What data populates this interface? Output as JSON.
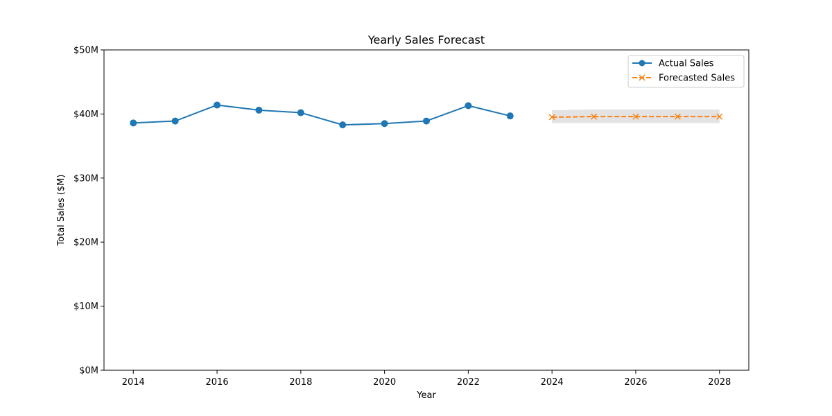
{
  "chart_data": {
    "type": "line",
    "title": "Yearly Sales Forecast",
    "xlabel": "Year",
    "ylabel": "Total Sales ($M)",
    "xlim": [
      2013.3,
      2028.7
    ],
    "ylim": [
      0,
      50
    ],
    "x_ticks": [
      2014,
      2016,
      2018,
      2020,
      2022,
      2024,
      2026,
      2028
    ],
    "x_tick_labels": [
      "2014",
      "2016",
      "2018",
      "2020",
      "2022",
      "2024",
      "2026",
      "2028"
    ],
    "y_ticks": [
      0,
      10,
      20,
      30,
      40,
      50
    ],
    "y_tick_labels": [
      "$0M",
      "$10M",
      "$20M",
      "$30M",
      "$40M",
      "$50M"
    ],
    "grid": false,
    "legend_position": "top-right",
    "series": [
      {
        "name": "Actual Sales",
        "style": "solid",
        "marker": "circle",
        "color": "#1f77b4",
        "x": [
          2014,
          2015,
          2016,
          2017,
          2018,
          2019,
          2020,
          2021,
          2022,
          2023
        ],
        "y": [
          38.6,
          38.9,
          41.4,
          40.6,
          40.2,
          38.3,
          38.5,
          38.9,
          41.3,
          39.7
        ]
      },
      {
        "name": "Forecasted Sales",
        "style": "dashed",
        "marker": "x",
        "color": "#ff7f0e",
        "x": [
          2024,
          2025,
          2026,
          2027,
          2028
        ],
        "y": [
          39.5,
          39.6,
          39.6,
          39.6,
          39.6
        ],
        "band_lower": [
          38.6,
          38.6,
          38.6,
          38.6,
          38.6
        ],
        "band_upper": [
          40.6,
          40.7,
          40.7,
          40.7,
          40.7
        ],
        "band_color": "#e0e0e0"
      }
    ]
  }
}
